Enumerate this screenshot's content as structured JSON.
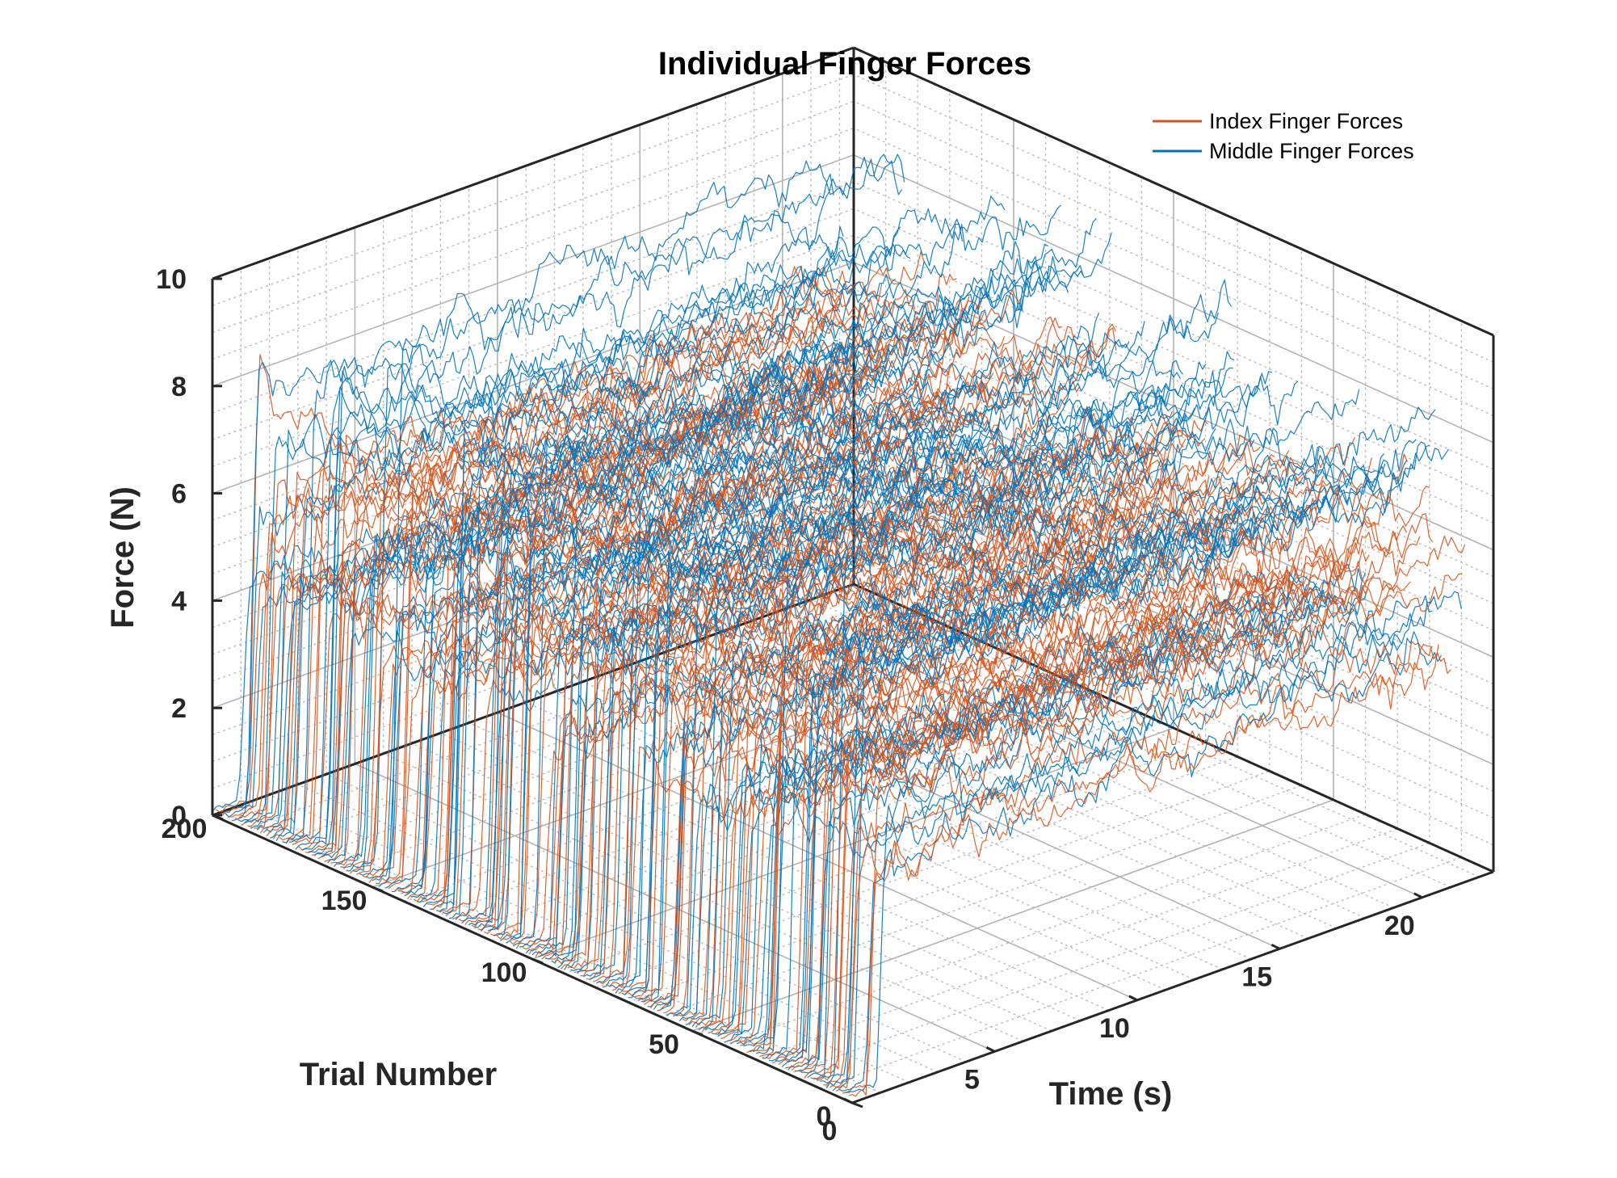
{
  "chart_data": {
    "type": "line",
    "title": "Individual Finger Forces",
    "xlabel": "Time (s)",
    "ylabel": "Trial Number",
    "zlabel": "Force (N)",
    "xlim": [
      0,
      22.5
    ],
    "ylim": [
      0,
      200
    ],
    "zlim": [
      0,
      10
    ],
    "xticks": [
      0,
      5,
      10,
      15,
      20
    ],
    "yticks": [
      0,
      50,
      100,
      150,
      200
    ],
    "zticks": [
      0,
      2,
      4,
      6,
      8,
      10
    ],
    "grid": "on",
    "minor_grid": "on",
    "legend_position": "top-right",
    "projection": "3d",
    "series": [
      {
        "name": "Index Finger Forces",
        "color": "#D95319",
        "trial_count": 200,
        "duration_s": [
          21,
          22
        ],
        "onset_s": [
          0.4,
          1.2
        ],
        "plateau_N": [
          3.5,
          6.8
        ]
      },
      {
        "name": "Middle Finger Forces",
        "color": "#0072BD",
        "trial_count": 200,
        "duration_s": [
          21,
          22
        ],
        "onset_s": [
          0.4,
          1.2
        ],
        "plateau_N": [
          3.6,
          8.6
        ]
      }
    ]
  }
}
